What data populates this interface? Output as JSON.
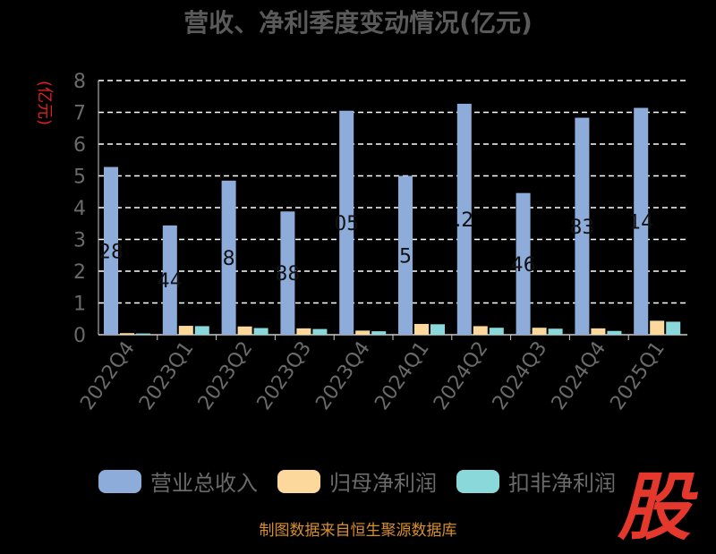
{
  "chart_data": {
    "type": "bar",
    "title": "营收、净利季度变动情况(亿元)",
    "ylabel": "(亿元)",
    "ylim": [
      0,
      8
    ],
    "yticks": [
      0,
      1,
      2,
      3,
      4,
      5,
      6,
      7,
      8
    ],
    "categories": [
      "2022Q4",
      "2023Q1",
      "2023Q2",
      "2023Q3",
      "2023Q4",
      "2024Q1",
      "2024Q2",
      "2024Q3",
      "2024Q4",
      "2025Q1"
    ],
    "series": [
      {
        "name": "营业总收入",
        "color": "#8eacd9",
        "values": [
          5.28,
          3.44,
          4.85,
          3.88,
          7.05,
          5.0,
          7.27,
          4.46,
          6.83,
          7.14
        ]
      },
      {
        "name": "归母净利润",
        "color": "#fcd89c",
        "values": [
          0.05,
          0.28,
          0.26,
          0.2,
          0.13,
          0.34,
          0.27,
          0.22,
          0.2,
          0.44
        ]
      },
      {
        "name": "扣非净利润",
        "color": "#8ad8da",
        "values": [
          0.04,
          0.27,
          0.21,
          0.18,
          0.11,
          0.33,
          0.22,
          0.19,
          0.12,
          0.41
        ]
      }
    ],
    "data_labels": [
      "28",
      "44",
      "8",
      "88",
      "05",
      "5",
      ".2",
      "46",
      "83",
      "14"
    ],
    "grid": true,
    "legend_position": "bottom"
  },
  "source": "制图数据来自恒生聚源数据库",
  "logo_text": "股"
}
